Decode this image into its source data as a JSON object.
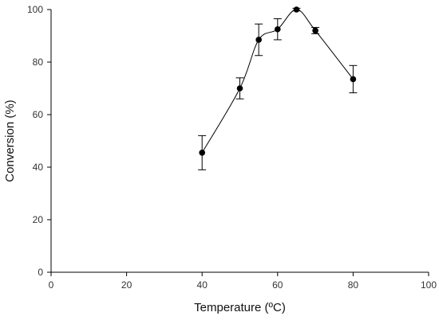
{
  "chart_data": {
    "type": "scatter",
    "title": "",
    "xlabel": "Temperature (ºC)",
    "ylabel": "Conversion (%)",
    "xlim": [
      0,
      100
    ],
    "ylim": [
      0,
      100
    ],
    "xticks": [
      0,
      20,
      40,
      60,
      80,
      100
    ],
    "yticks": [
      0,
      20,
      40,
      60,
      80,
      100
    ],
    "grid": false,
    "smooth_line": true,
    "series": [
      {
        "x": [
          40,
          50,
          55,
          60,
          65,
          70,
          80
        ],
        "y": [
          45.5,
          70,
          88.5,
          92.5,
          100,
          92,
          73.5
        ],
        "error": [
          6.5,
          4,
          6,
          4,
          0.5,
          1.2,
          5.2
        ]
      }
    ],
    "colors": {
      "marker": "#000000",
      "line": "#000000",
      "axis": "#000000"
    }
  }
}
